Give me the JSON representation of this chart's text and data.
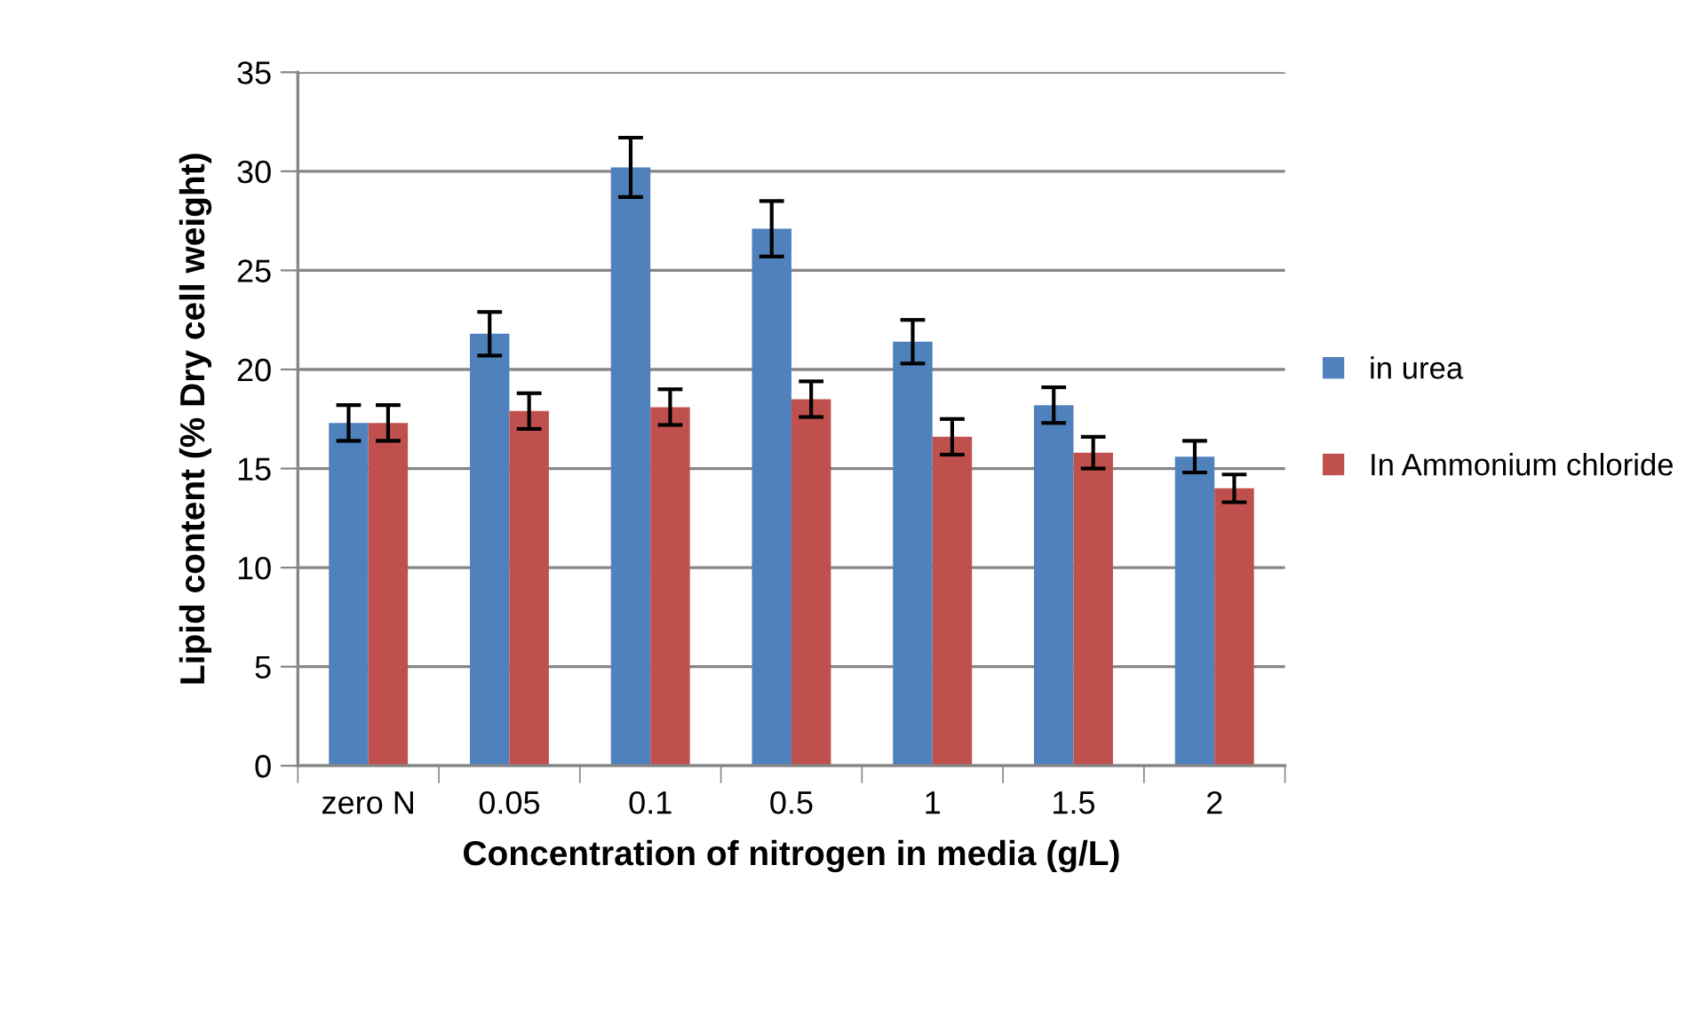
{
  "chart_data": {
    "type": "bar",
    "xlabel": "Concentration of nitrogen in media (g/L)",
    "ylabel": "Lipid content (% Dry cell weight)",
    "categories": [
      "zero N",
      "0.05",
      "0.1",
      "0.5",
      "1",
      "1.5",
      "2"
    ],
    "series": [
      {
        "name": "in urea",
        "color": "#4f81bd",
        "values": [
          17.3,
          21.8,
          30.2,
          27.1,
          21.4,
          18.2,
          15.6
        ],
        "errors": [
          0.9,
          1.1,
          1.5,
          1.4,
          1.1,
          0.9,
          0.8
        ]
      },
      {
        "name": "In Ammonium chloride",
        "color": "#c0504d",
        "values": [
          17.3,
          17.9,
          18.1,
          18.5,
          16.6,
          15.8,
          14.0
        ],
        "errors": [
          0.9,
          0.9,
          0.9,
          0.9,
          0.9,
          0.8,
          0.7
        ]
      }
    ],
    "ylim": [
      0,
      35
    ],
    "yticks": [
      0,
      5,
      10,
      15,
      20,
      25,
      30,
      35
    ],
    "grid": "y",
    "legend": "right"
  }
}
